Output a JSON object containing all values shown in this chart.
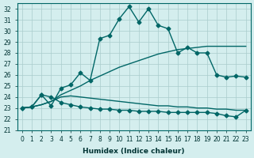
{
  "xlabel": "Humidex (Indice chaleur)",
  "bg_color": "#d4eeee",
  "grid_color": "#aacccc",
  "line_color": "#006666",
  "xlim": [
    -0.5,
    23.5
  ],
  "ylim": [
    21,
    32.5
  ],
  "yticks": [
    21,
    22,
    23,
    24,
    25,
    26,
    27,
    28,
    29,
    30,
    31,
    32
  ],
  "xticks": [
    0,
    1,
    2,
    3,
    4,
    5,
    6,
    7,
    8,
    9,
    10,
    11,
    12,
    13,
    14,
    15,
    16,
    17,
    18,
    19,
    20,
    21,
    22,
    23
  ],
  "series1": [
    23.0,
    23.1,
    24.2,
    23.2,
    24.8,
    25.1,
    26.2,
    25.5,
    29.3,
    29.6,
    31.1,
    32.2,
    30.8,
    32.0,
    30.5,
    30.2,
    28.0,
    28.5,
    28.0,
    28.0,
    26.0,
    25.8,
    25.9,
    25.8
  ],
  "series2": [
    23.0,
    23.1,
    23.3,
    23.6,
    24.2,
    24.6,
    25.0,
    25.5,
    25.9,
    26.3,
    26.7,
    27.0,
    27.3,
    27.6,
    27.9,
    28.1,
    28.3,
    28.4,
    28.5,
    28.6,
    28.6,
    28.6,
    28.6,
    28.6
  ],
  "series3": [
    23.0,
    23.1,
    23.3,
    23.6,
    24.0,
    24.1,
    24.0,
    23.9,
    23.8,
    23.7,
    23.6,
    23.5,
    23.4,
    23.3,
    23.2,
    23.2,
    23.1,
    23.1,
    23.0,
    23.0,
    22.9,
    22.9,
    22.8,
    22.8
  ],
  "series4": [
    23.0,
    23.1,
    24.2,
    24.0,
    23.5,
    23.3,
    23.1,
    23.0,
    22.9,
    22.9,
    22.8,
    22.8,
    22.7,
    22.7,
    22.7,
    22.6,
    22.6,
    22.6,
    22.6,
    22.6,
    22.5,
    22.3,
    22.2,
    22.8
  ]
}
